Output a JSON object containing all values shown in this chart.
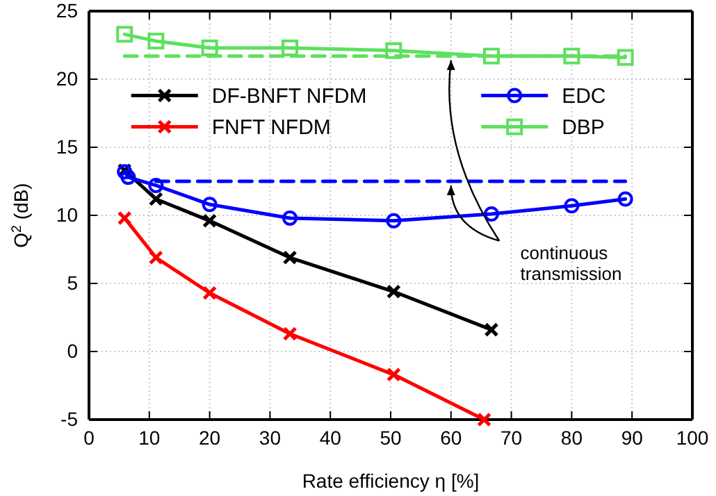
{
  "chart_data": {
    "type": "line",
    "xlabel": "Rate efficiency η [%]",
    "ylabel": "Q$^{2}$ (dB)",
    "xlim": [
      0,
      100
    ],
    "xticks": [
      0,
      10,
      20,
      30,
      40,
      50,
      60,
      70,
      80,
      90,
      100
    ],
    "ylim": [
      -5,
      25
    ],
    "yticks": [
      -5,
      0,
      5,
      10,
      15,
      20,
      25
    ],
    "grid": true,
    "legend": "top",
    "series": [
      {
        "name": "DF-BNFT NFDM",
        "color": "#000000",
        "marker": "cross",
        "x": [
          5.9,
          11.1,
          20,
          33.3,
          50.5,
          66.7
        ],
        "values": [
          13.3,
          11.2,
          9.6,
          6.9,
          4.4,
          1.6
        ]
      },
      {
        "name": "FNFT NFDM",
        "color": "#ff0000",
        "marker": "cross",
        "x": [
          5.9,
          11.1,
          20,
          33.3,
          50.5,
          65.5
        ],
        "values": [
          9.8,
          6.9,
          4.3,
          1.3,
          -1.7,
          -5
        ]
      },
      {
        "name": "EDC",
        "color": "#0000ff",
        "marker": "circle",
        "x": [
          5.9,
          6.5,
          11.1,
          20,
          33.3,
          50.5,
          66.7,
          80,
          88.9
        ],
        "values": [
          13.2,
          12.8,
          12.2,
          10.8,
          9.8,
          9.6,
          10.1,
          10.7,
          11.2
        ]
      },
      {
        "name": "DBP",
        "color": "#5ee05e",
        "marker": "square",
        "x": [
          5.9,
          11.1,
          20,
          33.3,
          50.5,
          66.7,
          80,
          88.9
        ],
        "values": [
          23.3,
          22.8,
          22.3,
          22.3,
          22.1,
          21.7,
          21.7,
          21.6
        ]
      },
      {
        "color": "#0000ff",
        "marker": "none",
        "line_style": "dashed",
        "x": [
          11.1,
          88.9
        ],
        "values": [
          12.5,
          12.5
        ]
      },
      {
        "color": "#5ee05e",
        "marker": "none",
        "line_style": "dashed",
        "x": [
          5.9,
          88.9
        ],
        "values": [
          21.7,
          21.7
        ]
      }
    ],
    "annotations": [
      {
        "text": "continuous transmission",
        "x": 60,
        "y": 21.7
      }
    ]
  }
}
